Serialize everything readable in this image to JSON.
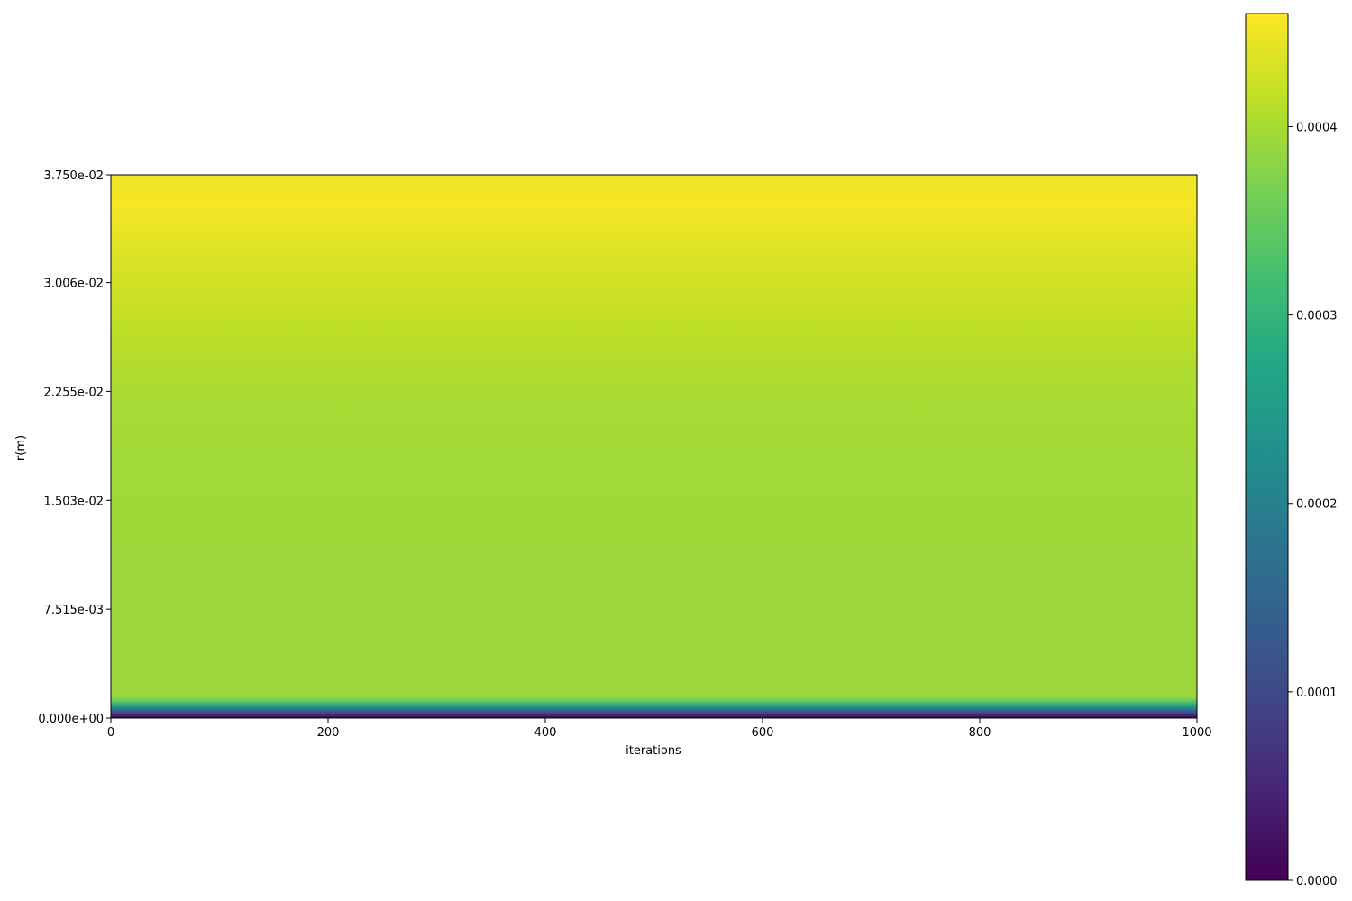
{
  "chart_data": {
    "type": "heatmap",
    "title": "",
    "xlabel": "iterations",
    "ylabel": "r(m)",
    "xlim": [
      0,
      1000
    ],
    "ylim": [
      0,
      0.0375
    ],
    "x_ticks": [
      0,
      200,
      400,
      600,
      800,
      1000
    ],
    "x_tick_labels": [
      "0",
      "200",
      "400",
      "600",
      "800",
      "1000"
    ],
    "y_ticks": [
      0,
      0.007515,
      0.01503,
      0.02255,
      0.03006,
      0.0375
    ],
    "y_tick_labels": [
      "0.000e+00",
      "7.515e-03",
      "1.503e-02",
      "2.255e-02",
      "3.006e-02",
      "3.750e-02"
    ],
    "colormap": "viridis",
    "colorbar": {
      "min": 0,
      "max": 0.00046,
      "ticks": [
        0,
        0.0001,
        0.0002,
        0.0003,
        0.0004
      ],
      "tick_labels": [
        "0.0000",
        "0.0001",
        "0.0002",
        "0.0003",
        "0.0004"
      ]
    },
    "profile_note": "values are constant along iterations; they vary only with r",
    "profile": [
      {
        "r": 0.0,
        "value": 0.0
      },
      {
        "r": 0.0003,
        "value": 8e-05
      },
      {
        "r": 0.0006,
        "value": 0.00018
      },
      {
        "r": 0.0009,
        "value": 0.00028
      },
      {
        "r": 0.0012,
        "value": 0.00035
      },
      {
        "r": 0.0015,
        "value": 0.00039
      },
      {
        "r": 0.0025,
        "value": 0.000392
      },
      {
        "r": 0.0075,
        "value": 0.000392
      },
      {
        "r": 0.015,
        "value": 0.000393
      },
      {
        "r": 0.0225,
        "value": 0.0004
      },
      {
        "r": 0.027,
        "value": 0.000415
      },
      {
        "r": 0.03,
        "value": 0.000428
      },
      {
        "r": 0.033,
        "value": 0.000442
      },
      {
        "r": 0.0355,
        "value": 0.000455
      },
      {
        "r": 0.0365,
        "value": 0.000452
      },
      {
        "r": 0.0375,
        "value": 0.000448
      }
    ]
  }
}
